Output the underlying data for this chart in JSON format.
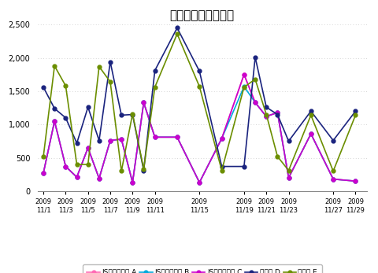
{
  "title": "日別ページビュー数",
  "series_names": [
    "JSビーコン型 A",
    "JSビーコン型 B",
    "JSビーコン型 C",
    "ログ型 D",
    "ログ型 E"
  ],
  "colors": [
    "#ff69b4",
    "#00aadd",
    "#cc00cc",
    "#1a237e",
    "#6b8e00"
  ],
  "days": [
    1,
    2,
    3,
    4,
    5,
    6,
    7,
    8,
    9,
    10,
    11,
    13,
    15,
    17,
    19,
    20,
    21,
    22,
    23,
    25,
    27,
    29
  ],
  "series_A": [
    270,
    1050,
    370,
    210,
    650,
    190,
    760,
    780,
    130,
    1330,
    810,
    810,
    130,
    790,
    1750,
    1330,
    1120,
    1180,
    200,
    860,
    180,
    150
  ],
  "series_B": [
    270,
    1050,
    370,
    210,
    650,
    190,
    760,
    780,
    130,
    1330,
    810,
    810,
    130,
    790,
    1570,
    1330,
    1120,
    1180,
    200,
    860,
    180,
    150
  ],
  "series_C": [
    270,
    1050,
    370,
    210,
    650,
    190,
    760,
    780,
    130,
    1330,
    810,
    810,
    130,
    790,
    1750,
    1330,
    1120,
    1180,
    200,
    860,
    180,
    150
  ],
  "series_D": [
    1560,
    1240,
    1100,
    720,
    1260,
    760,
    1940,
    1140,
    1150,
    310,
    1810,
    2450,
    1800,
    370,
    370,
    2010,
    1260,
    1150,
    750,
    1200,
    760,
    1200
  ],
  "series_E": [
    520,
    1880,
    1580,
    400,
    400,
    1870,
    1640,
    300,
    1160,
    330,
    1560,
    2360,
    1570,
    310,
    1560,
    1680,
    1150,
    520,
    310,
    1140,
    300,
    1140
  ],
  "tick_days": [
    1,
    3,
    5,
    7,
    9,
    11,
    15,
    19,
    21,
    23,
    27,
    29
  ],
  "tick_labels": [
    "2009\n11/1",
    "2009\n11/3",
    "2009\n11/5",
    "2009\n11/7",
    "2009\n11/9",
    "2009\n11/11",
    "2009\n11/15",
    "2009\n11/19",
    "2009\n11/21",
    "2009\n11/23",
    "2009\n11/27",
    "2009\n11/29"
  ],
  "ylim": [
    0,
    2500
  ],
  "yticks": [
    0,
    500,
    1000,
    1500,
    2000,
    2500
  ],
  "background_color": "#ffffff",
  "grid_color": "#c8c8c8",
  "title_fontsize": 11
}
